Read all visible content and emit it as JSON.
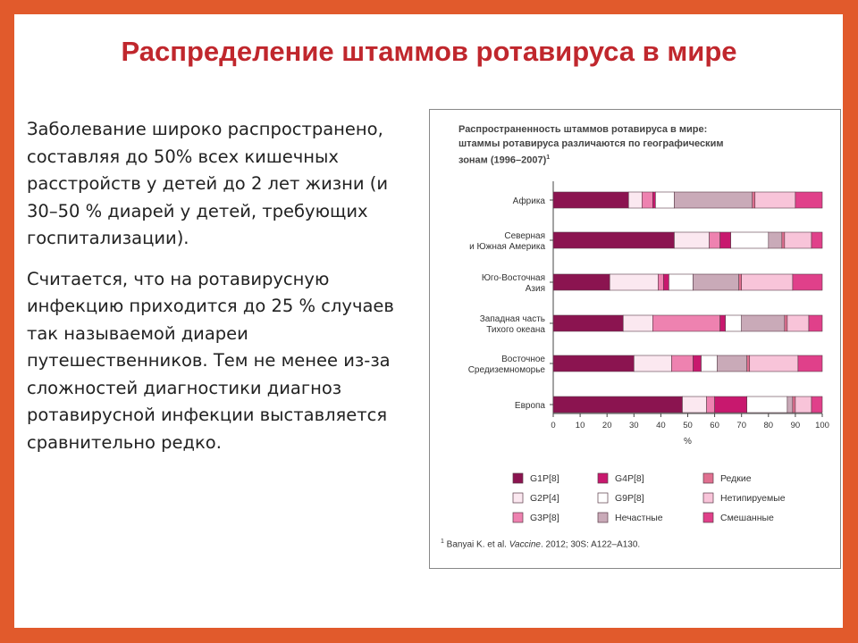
{
  "slide": {
    "title": "Распределение штаммов ротавируса в мире",
    "paragraphs": [
      "Заболевание широко распространено, составляя до 50% всех кишечных расстройств у детей до 2 лет жизни (и 30–50 % диарей у детей, требующих госпитализации).",
      "Считается, что на ротавирусную инфекцию приходится до 25 % случаев так называемой диареи путешественников. Тем не менее из-за сложностей диагностики диагноз ротавирусной инфекции выставляется сравнительно редко."
    ]
  },
  "figure": {
    "title_lines": [
      "Распространенность штаммов ротавируса в мире:",
      "штаммы ротавируса различаются по географическим",
      "зонам (1996–2007)"
    ],
    "title_superscript": "1",
    "footnote_marker": "1",
    "footnote_text": " Banyai K. et al. ",
    "footnote_journal": "Vaccine",
    "footnote_tail": ". 2012; 30S: A122–A130."
  },
  "chart_data": {
    "type": "bar",
    "orientation": "horizontal",
    "stacked": true,
    "categories": [
      [
        "Африка"
      ],
      [
        "Северная",
        "и Южная Америка"
      ],
      [
        "Юго-Восточная",
        "Азия"
      ],
      [
        "Западная часть",
        "Тихого океана"
      ],
      [
        "Восточное",
        "Средиземноморье"
      ],
      [
        "Европа"
      ]
    ],
    "xlim": [
      0,
      100
    ],
    "xticks": [
      0,
      10,
      20,
      30,
      40,
      50,
      60,
      70,
      80,
      90,
      100
    ],
    "xlabel": "%",
    "legend_position": "bottom",
    "series": [
      {
        "name": "G1P[8]",
        "color": "#8b1450",
        "values": [
          28,
          45,
          21,
          26,
          30,
          48
        ]
      },
      {
        "name": "G2P[4]",
        "color": "#fbe8f0",
        "values": [
          5,
          13,
          18,
          11,
          14,
          9
        ]
      },
      {
        "name": "G3P[8]",
        "color": "#ee82b0",
        "values": [
          4,
          4,
          2,
          25,
          8,
          3
        ]
      },
      {
        "name": "G4P[8]",
        "color": "#c8186e",
        "values": [
          1,
          4,
          2,
          2,
          3,
          12
        ]
      },
      {
        "name": "G9P[8]",
        "color": "#ffffff",
        "values": [
          7,
          14,
          9,
          6,
          6,
          15
        ]
      },
      {
        "name": "Нечастные",
        "color": "#c9aab8",
        "values": [
          29,
          5,
          17,
          16,
          11,
          2
        ]
      },
      {
        "name": "Редкие",
        "color": "#e07090",
        "values": [
          1,
          1,
          1,
          1,
          1,
          1
        ]
      },
      {
        "name": "Нетипируемые",
        "color": "#f8c4d9",
        "values": [
          15,
          10,
          19,
          8,
          18,
          6
        ]
      },
      {
        "name": "Смешанные",
        "color": "#e0408a",
        "values": [
          10,
          4,
          11,
          5,
          9,
          4
        ]
      }
    ],
    "legend_order": [
      "G1P[8]",
      "G4P[8]",
      "Редкие",
      "G2P[4]",
      "G9P[8]",
      "Нетипируемые",
      "G3P[8]",
      "Нечастные",
      "Смешанные"
    ]
  }
}
